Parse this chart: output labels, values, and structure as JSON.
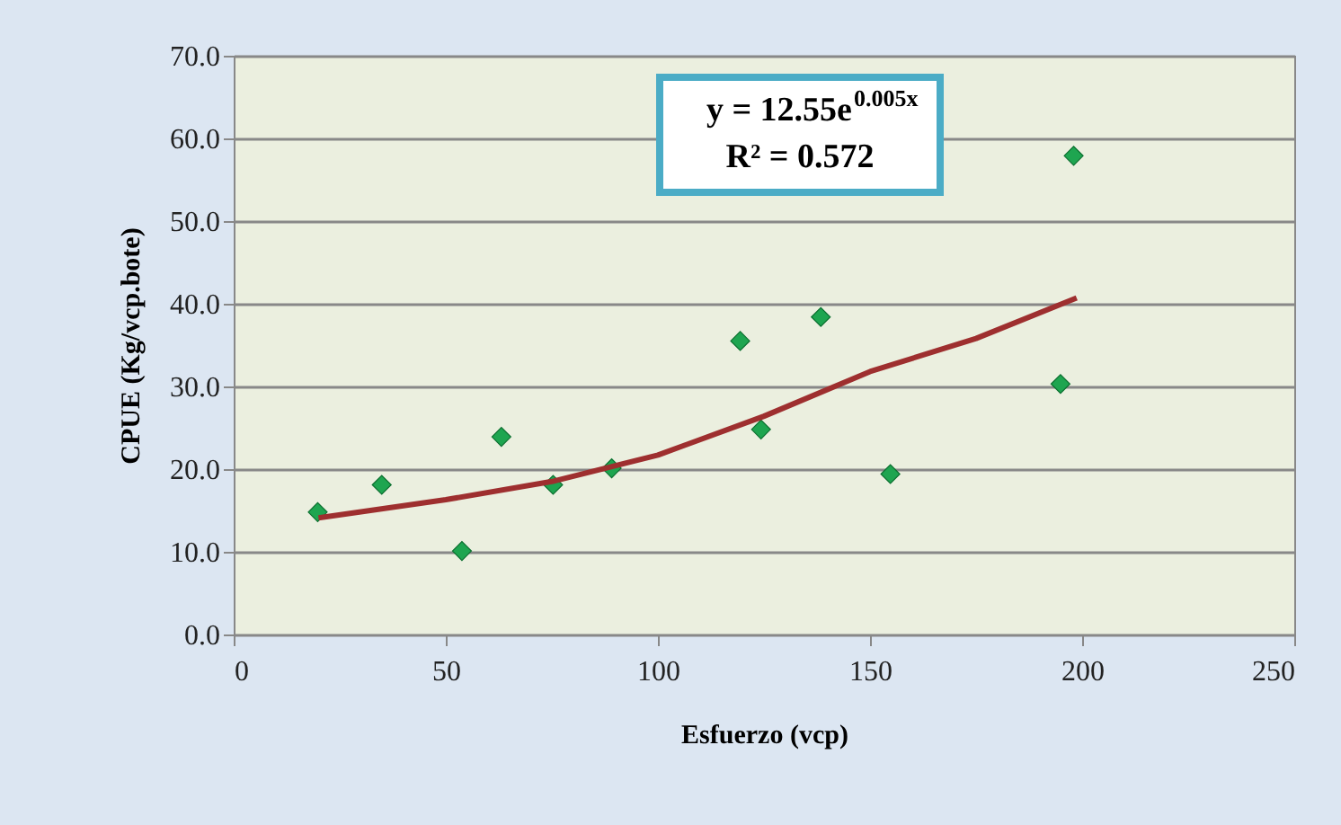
{
  "chart_data": {
    "type": "scatter",
    "xlabel": "Esfuerzo (vcp)",
    "ylabel": "CPUE  (Kg/vcp.bote)",
    "xlim": [
      0,
      250
    ],
    "ylim": [
      0,
      70
    ],
    "xticks": [
      0,
      50,
      100,
      150,
      200,
      250
    ],
    "yticks": [
      {
        "value": 0,
        "label": "0.0"
      },
      {
        "value": 10,
        "label": "10.0"
      },
      {
        "value": 20,
        "label": "20.0"
      },
      {
        "value": 30,
        "label": "30.0"
      },
      {
        "value": 40,
        "label": "40.0"
      },
      {
        "value": 50,
        "label": "50.0"
      },
      {
        "value": 60,
        "label": "60.0"
      },
      {
        "value": 70,
        "label": "70.0"
      }
    ],
    "grid": "y",
    "marker": "diamond",
    "legend": false,
    "annotations": [
      "y = 12.55e$^{0.005x}$",
      "R² = 0.572"
    ],
    "series": [
      {
        "color": "#1ea550",
        "x": [
          19.8,
          34.9,
          53.8,
          63.1,
          75.3,
          89.1,
          119.4,
          124.3,
          138.4,
          154.8,
          194.9,
          198.0
        ],
        "values": [
          14.8,
          18.1,
          10.1,
          23.9,
          18.1,
          20.1,
          35.5,
          24.8,
          38.4,
          19.4,
          30.3,
          57.9
        ]
      },
      {
        "type": "line",
        "color": "#9e2f2f",
        "line_style": "solid",
        "marker": "none",
        "x": [
          20,
          50,
          75,
          100,
          125,
          150,
          175,
          198.7
        ],
        "values": [
          14.1,
          16.3,
          18.5,
          21.7,
          26.4,
          31.8,
          35.8,
          40.7
        ]
      }
    ]
  }
}
